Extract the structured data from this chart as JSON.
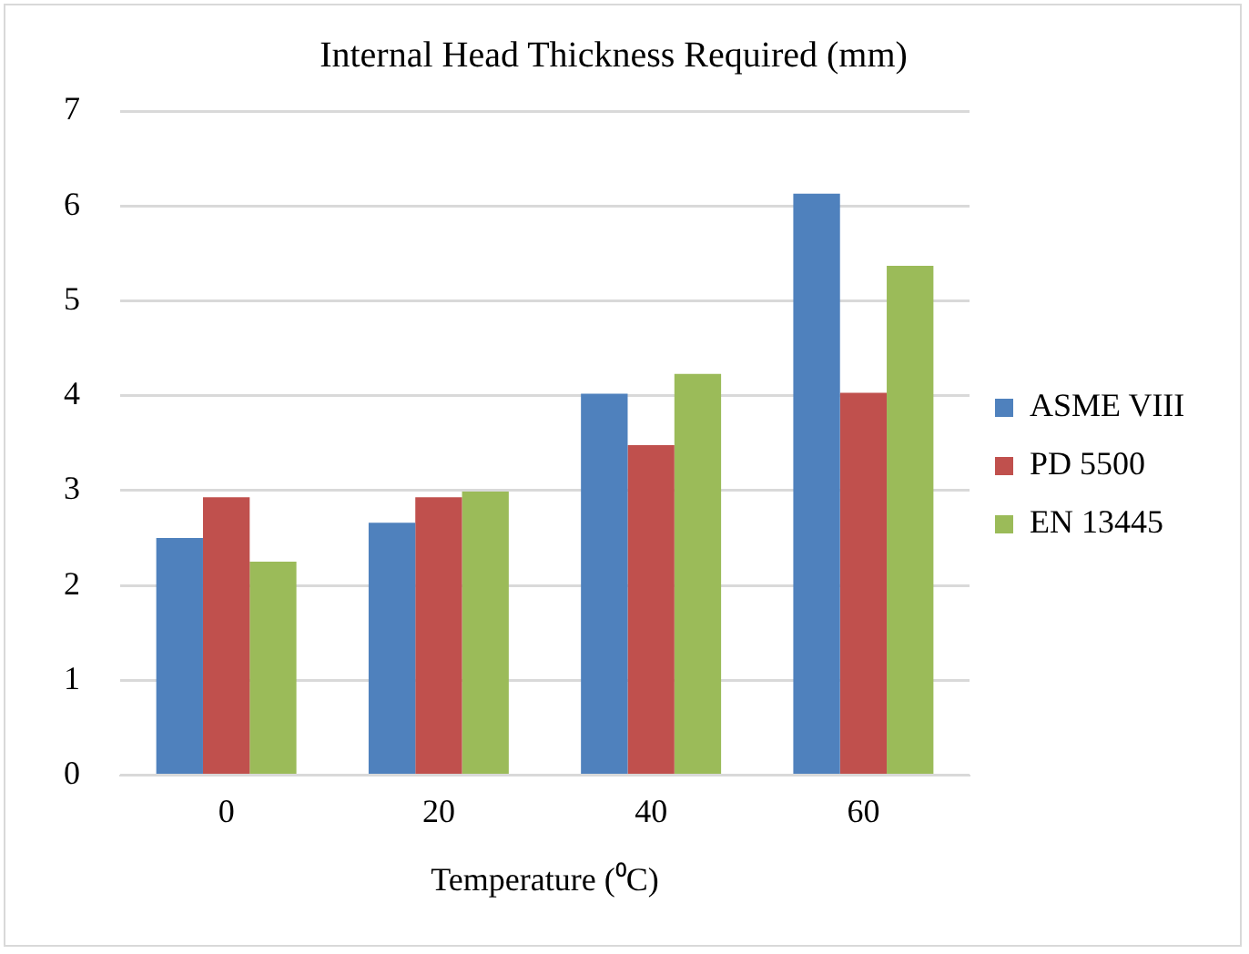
{
  "chart_data": {
    "type": "bar",
    "title": "Internal Head Thickness Required (mm)",
    "xlabel": "Temperature (⁰C)",
    "categories": [
      "0",
      "20",
      "40",
      "60"
    ],
    "series": [
      {
        "name": "ASME VIII",
        "color": "#4f81bd",
        "values": [
          2.5,
          2.66,
          4.02,
          6.13
        ]
      },
      {
        "name": "PD 5500",
        "color": "#c0504d",
        "values": [
          2.93,
          2.93,
          3.48,
          4.03
        ]
      },
      {
        "name": "EN 13445",
        "color": "#9bbb59",
        "values": [
          2.25,
          2.99,
          4.23,
          5.37
        ]
      }
    ],
    "ylim": [
      0,
      7
    ],
    "yticks": [
      0,
      1,
      2,
      3,
      4,
      5,
      6,
      7
    ],
    "grid": "y",
    "legend": "right"
  }
}
